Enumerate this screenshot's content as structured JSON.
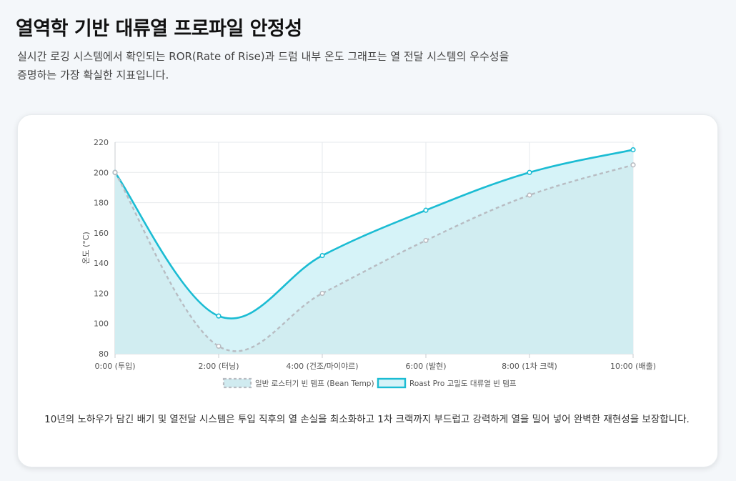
{
  "header": {
    "title": "열역학 기반 대류열 프로파일 안정성",
    "description": "실시간 로깅 시스템에서 확인되는 ROR(Rate of Rise)과 드럼 내부 온도 그래프는 열 전달 시스템의 우수성을 증명하는 가장 확실한 지표입니다."
  },
  "caption": "10년의 노하우가 담긴 배기 및 열전달 시스템은 투입 직후의 열 손실을 최소화하고 1차 크랙까지 부드럽고 강력하게 열을 밀어 넣어 완벽한 재현성을 보장합니다.",
  "colors": {
    "bean_line": "#b8bcc2",
    "bean_fill": "#d0ebf0",
    "pro_line": "#1bbcd3",
    "pro_fill": "#d6f3f8",
    "grid": "#e6e9ec",
    "axis_text": "#555555"
  },
  "chart_data": {
    "type": "line",
    "xlabel": "",
    "ylabel": "온도 (°C)",
    "ylim": [
      80,
      220
    ],
    "yticks": [
      80,
      100,
      120,
      140,
      160,
      180,
      200,
      220
    ],
    "categories": [
      "0:00 (투입)",
      "2:00 (터닝)",
      "4:00 (건조/마이야르)",
      "6:00 (발현)",
      "8:00 (1차 크랙)",
      "10:00 (배출)"
    ],
    "grid": true,
    "legend_position": "bottom",
    "series": [
      {
        "name": "일반 로스터기 빈 템프 (Bean Temp)",
        "values": [
          200,
          85,
          120,
          155,
          185,
          205
        ],
        "style": "dashed"
      },
      {
        "name": "Roast Pro 고밀도 대류열 빈 템프",
        "values": [
          200,
          105,
          145,
          175,
          200,
          215
        ],
        "style": "solid"
      }
    ]
  }
}
